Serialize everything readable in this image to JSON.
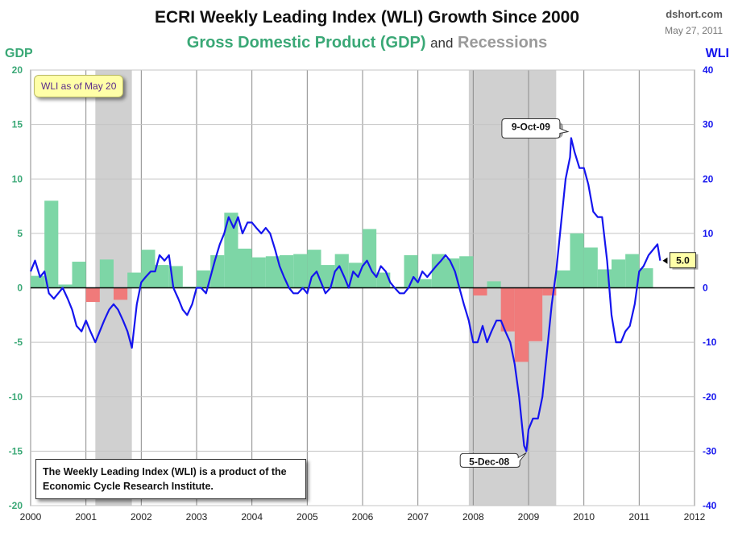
{
  "header": {
    "title": "ECRI Weekly Leading Index (WLI) Growth Since 2000",
    "subtitle_gdp": "Gross Domestic Product (GDP)",
    "subtitle_and": "and",
    "subtitle_recessions": "Recessions",
    "brand": "dshort.com",
    "date": "May 27, 2011"
  },
  "notes": {
    "wli_as_of": "WLI as of May 20",
    "source": "The Weekly Leading Index (WLI) is a product of the Economic Cycle Research Institute."
  },
  "colors": {
    "gdp_positive": "#7dd6a6",
    "gdp_negative": "#f07a7a",
    "wli_line": "#1515ee",
    "recession": "#d0d0d0",
    "gdp_axis": "#3aa876",
    "wli_axis": "#1515ee"
  },
  "chart_data": {
    "type": "bar+line",
    "ylabel_left": "GDP",
    "ylabel_right": "WLI",
    "xlim": [
      2000,
      2012
    ],
    "ylim_left": [
      -20,
      20
    ],
    "ylim_right": [
      -40,
      40
    ],
    "x_ticks": [
      "2000",
      "2001",
      "2002",
      "2003",
      "2004",
      "2005",
      "2006",
      "2007",
      "2008",
      "2009",
      "2010",
      "2011",
      "2012"
    ],
    "y_ticks_left": [
      20,
      15,
      10,
      5,
      0,
      -5,
      -10,
      -15,
      -20
    ],
    "y_ticks_right": [
      40,
      30,
      20,
      10,
      0,
      -10,
      -20,
      -30,
      -40
    ],
    "grid": true,
    "recessions": [
      [
        2001.17,
        2001.83
      ],
      [
        2007.92,
        2009.5
      ]
    ],
    "gdp_series": {
      "name": "Gross Domestic Product (GDP)",
      "quarters": [
        [
          2000.0,
          1.1
        ],
        [
          2000.25,
          8.0
        ],
        [
          2000.5,
          0.3
        ],
        [
          2000.75,
          2.4
        ],
        [
          2001.0,
          -1.3
        ],
        [
          2001.25,
          2.6
        ],
        [
          2001.5,
          -1.1
        ],
        [
          2001.75,
          1.4
        ],
        [
          2002.0,
          3.5
        ],
        [
          2002.25,
          2.1
        ],
        [
          2002.5,
          2.0
        ],
        [
          2002.75,
          0.1
        ],
        [
          2003.0,
          1.6
        ],
        [
          2003.25,
          3.0
        ],
        [
          2003.5,
          6.9
        ],
        [
          2003.75,
          3.6
        ],
        [
          2004.0,
          2.8
        ],
        [
          2004.25,
          2.9
        ],
        [
          2004.5,
          3.0
        ],
        [
          2004.75,
          3.1
        ],
        [
          2005.0,
          3.5
        ],
        [
          2005.25,
          2.1
        ],
        [
          2005.5,
          3.1
        ],
        [
          2005.75,
          2.3
        ],
        [
          2006.0,
          5.4
        ],
        [
          2006.25,
          1.4
        ],
        [
          2006.5,
          0.1
        ],
        [
          2006.75,
          3.0
        ],
        [
          2007.0,
          0.8
        ],
        [
          2007.25,
          3.1
        ],
        [
          2007.5,
          2.7
        ],
        [
          2007.75,
          2.9
        ],
        [
          2008.0,
          -0.7
        ],
        [
          2008.25,
          0.6
        ],
        [
          2008.5,
          -4.0
        ],
        [
          2008.75,
          -6.8
        ],
        [
          2009.0,
          -4.9
        ],
        [
          2009.25,
          -0.7
        ],
        [
          2009.5,
          1.6
        ],
        [
          2009.75,
          5.0
        ],
        [
          2010.0,
          3.7
        ],
        [
          2010.25,
          1.7
        ],
        [
          2010.5,
          2.6
        ],
        [
          2010.75,
          3.1
        ],
        [
          2011.0,
          1.8
        ]
      ]
    },
    "wli_series": {
      "name": "WLI",
      "points": [
        [
          2000.0,
          3
        ],
        [
          2000.08,
          5
        ],
        [
          2000.17,
          2
        ],
        [
          2000.25,
          3
        ],
        [
          2000.33,
          -1
        ],
        [
          2000.42,
          -2
        ],
        [
          2000.5,
          -1
        ],
        [
          2000.58,
          0
        ],
        [
          2000.67,
          -2
        ],
        [
          2000.75,
          -4
        ],
        [
          2000.83,
          -7
        ],
        [
          2000.92,
          -8
        ],
        [
          2001.0,
          -6
        ],
        [
          2001.08,
          -8
        ],
        [
          2001.17,
          -10
        ],
        [
          2001.25,
          -8
        ],
        [
          2001.33,
          -6
        ],
        [
          2001.42,
          -4
        ],
        [
          2001.5,
          -3
        ],
        [
          2001.58,
          -4
        ],
        [
          2001.67,
          -6
        ],
        [
          2001.75,
          -8
        ],
        [
          2001.83,
          -11
        ],
        [
          2001.92,
          -3
        ],
        [
          2002.0,
          1
        ],
        [
          2002.08,
          2
        ],
        [
          2002.17,
          3
        ],
        [
          2002.25,
          3
        ],
        [
          2002.33,
          6
        ],
        [
          2002.42,
          5
        ],
        [
          2002.5,
          6
        ],
        [
          2002.58,
          0
        ],
        [
          2002.67,
          -2
        ],
        [
          2002.75,
          -4
        ],
        [
          2002.83,
          -5
        ],
        [
          2002.92,
          -3
        ],
        [
          2003.0,
          0
        ],
        [
          2003.08,
          0
        ],
        [
          2003.17,
          -1
        ],
        [
          2003.25,
          2
        ],
        [
          2003.33,
          5
        ],
        [
          2003.42,
          8
        ],
        [
          2003.5,
          10
        ],
        [
          2003.58,
          13
        ],
        [
          2003.67,
          11
        ],
        [
          2003.75,
          13
        ],
        [
          2003.83,
          10
        ],
        [
          2003.92,
          12
        ],
        [
          2004.0,
          12
        ],
        [
          2004.08,
          11
        ],
        [
          2004.17,
          10
        ],
        [
          2004.25,
          11
        ],
        [
          2004.33,
          10
        ],
        [
          2004.42,
          7
        ],
        [
          2004.5,
          4
        ],
        [
          2004.58,
          2
        ],
        [
          2004.67,
          0
        ],
        [
          2004.75,
          -1
        ],
        [
          2004.83,
          -1
        ],
        [
          2004.92,
          0
        ],
        [
          2005.0,
          -1
        ],
        [
          2005.08,
          2
        ],
        [
          2005.17,
          3
        ],
        [
          2005.25,
          1
        ],
        [
          2005.33,
          -1
        ],
        [
          2005.42,
          0
        ],
        [
          2005.5,
          3
        ],
        [
          2005.58,
          4
        ],
        [
          2005.67,
          2
        ],
        [
          2005.75,
          0
        ],
        [
          2005.83,
          3
        ],
        [
          2005.92,
          2
        ],
        [
          2006.0,
          4
        ],
        [
          2006.08,
          5
        ],
        [
          2006.17,
          3
        ],
        [
          2006.25,
          2
        ],
        [
          2006.33,
          4
        ],
        [
          2006.42,
          3
        ],
        [
          2006.5,
          1
        ],
        [
          2006.58,
          0
        ],
        [
          2006.67,
          -1
        ],
        [
          2006.75,
          -1
        ],
        [
          2006.83,
          0
        ],
        [
          2006.92,
          2
        ],
        [
          2007.0,
          1
        ],
        [
          2007.08,
          3
        ],
        [
          2007.17,
          2
        ],
        [
          2007.25,
          3
        ],
        [
          2007.33,
          4
        ],
        [
          2007.42,
          5
        ],
        [
          2007.5,
          6
        ],
        [
          2007.58,
          5
        ],
        [
          2007.67,
          3
        ],
        [
          2007.75,
          0
        ],
        [
          2007.83,
          -3
        ],
        [
          2007.92,
          -6
        ],
        [
          2008.0,
          -10
        ],
        [
          2008.08,
          -10
        ],
        [
          2008.17,
          -7
        ],
        [
          2008.25,
          -10
        ],
        [
          2008.33,
          -8
        ],
        [
          2008.42,
          -6
        ],
        [
          2008.5,
          -6
        ],
        [
          2008.58,
          -8
        ],
        [
          2008.67,
          -10
        ],
        [
          2008.75,
          -14
        ],
        [
          2008.83,
          -20
        ],
        [
          2008.92,
          -29
        ],
        [
          2008.96,
          -30
        ],
        [
          2009.0,
          -26
        ],
        [
          2009.08,
          -24
        ],
        [
          2009.17,
          -24
        ],
        [
          2009.25,
          -20
        ],
        [
          2009.33,
          -12
        ],
        [
          2009.42,
          -3
        ],
        [
          2009.5,
          3
        ],
        [
          2009.58,
          11
        ],
        [
          2009.67,
          20
        ],
        [
          2009.75,
          24
        ],
        [
          2009.77,
          27.5
        ],
        [
          2009.83,
          25
        ],
        [
          2009.92,
          22
        ],
        [
          2010.0,
          22
        ],
        [
          2010.08,
          19
        ],
        [
          2010.17,
          14
        ],
        [
          2010.25,
          13
        ],
        [
          2010.33,
          13
        ],
        [
          2010.42,
          5
        ],
        [
          2010.5,
          -5
        ],
        [
          2010.58,
          -10
        ],
        [
          2010.67,
          -10
        ],
        [
          2010.75,
          -8
        ],
        [
          2010.83,
          -7
        ],
        [
          2010.92,
          -3
        ],
        [
          2011.0,
          3
        ],
        [
          2011.08,
          4
        ],
        [
          2011.17,
          6
        ],
        [
          2011.25,
          7
        ],
        [
          2011.33,
          8
        ],
        [
          2011.38,
          5
        ]
      ]
    },
    "annotations": [
      {
        "text": "9-Oct-09",
        "x": 2009.77,
        "y": 27.5
      },
      {
        "text": "5-Dec-08",
        "x": 2008.93,
        "y": -30
      },
      {
        "text": "5.0",
        "x": 2011.38,
        "y": 5.0
      }
    ]
  }
}
